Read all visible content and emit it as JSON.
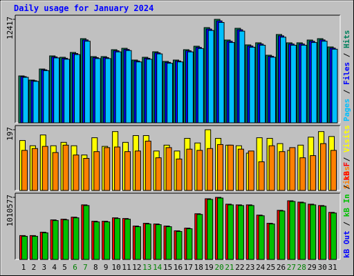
{
  "title": "Daily usage for January 2024",
  "legend_separator": " / ",
  "categories": [
    "1",
    "2",
    "3",
    "4",
    "5",
    "6",
    "7",
    "8",
    "9",
    "10",
    "11",
    "12",
    "13",
    "14",
    "15",
    "16",
    "17",
    "18",
    "19",
    "20",
    "21",
    "22",
    "23",
    "24",
    "25",
    "26",
    "27",
    "28",
    "29",
    "30",
    "31"
  ],
  "category_colors": [
    "#000000",
    "#000000",
    "#000000",
    "#000000",
    "#000000",
    "#008000",
    "#008000",
    "#000000",
    "#000000",
    "#000000",
    "#000000",
    "#000000",
    "#008000",
    "#008000",
    "#000000",
    "#000000",
    "#000000",
    "#000000",
    "#000000",
    "#008000",
    "#008000",
    "#000000",
    "#000000",
    "#000000",
    "#000000",
    "#000000",
    "#008000",
    "#008000",
    "#000000",
    "#000000",
    "#000000"
  ],
  "chart_data": [
    {
      "type": "bar",
      "ylim": [
        0,
        12417
      ],
      "yticks": [
        12417
      ],
      "series": [
        {
          "name": "Hits",
          "color": "#00805c",
          "values": [
            5629,
            5132,
            6457,
            8030,
            7864,
            8444,
            10099,
            7947,
            7947,
            8775,
            8940,
            7533,
            7864,
            8526,
            7367,
            7533,
            8775,
            9189,
            11424,
            12417,
            9934,
            11341,
            9354,
            9602,
            8112,
            10596,
            9602,
            9602,
            9934,
            10099,
            9106
          ]
        },
        {
          "name": "Files",
          "color": "#0000ff",
          "values": [
            5545,
            5055,
            6360,
            7910,
            7746,
            8317,
            9948,
            7828,
            7828,
            8643,
            8806,
            7420,
            7746,
            8398,
            7256,
            7420,
            8643,
            9051,
            11253,
            12231,
            9785,
            11171,
            9214,
            9458,
            7990,
            10437,
            9458,
            9458,
            9785,
            9948,
            8969
          ]
        },
        {
          "name": "Pages",
          "color": "#00c0ff",
          "values": [
            5460,
            4978,
            6263,
            7789,
            7628,
            8191,
            9796,
            7709,
            7709,
            8512,
            8672,
            7307,
            7628,
            8270,
            7146,
            7307,
            8512,
            8913,
            11081,
            12044,
            9636,
            11001,
            9073,
            9314,
            7869,
            10278,
            9314,
            9314,
            9636,
            9796,
            8833
          ]
        }
      ]
    },
    {
      "type": "bar",
      "ylim": [
        0,
        197
      ],
      "yticks": [
        197
      ],
      "series": [
        {
          "name": "Visits",
          "color": "#ffff00",
          "values": [
            162,
            145,
            180,
            145,
            156,
            145,
            115,
            171,
            143,
            191,
            156,
            178,
            178,
            128,
            147,
            128,
            169,
            154,
            197,
            169,
            147,
            145,
            121,
            171,
            169,
            152,
            130,
            147,
            173,
            191,
            175
          ]
        },
        {
          "name": "Sites",
          "color": "#ff8000",
          "values": [
            130,
            136,
            143,
            123,
            147,
            115,
            104,
            126,
            139,
            141,
            126,
            128,
            160,
            106,
            139,
            102,
            134,
            130,
            136,
            149,
            147,
            134,
            128,
            93,
            145,
            126,
            139,
            106,
            113,
            152,
            130
          ]
        }
      ]
    },
    {
      "type": "bar",
      "ylim": [
        0,
        1010577
      ],
      "yticks": [
        1010577
      ],
      "series": [
        {
          "name": "kB F",
          "color": "#ff0000",
          "values": [
            388675,
            388675,
            444200,
            644090,
            655195,
            688510,
            888400,
            621880,
            621880,
            677405,
            666300,
            544145,
            588565,
            577460,
            544145,
            466410,
            510830,
            744035,
            988345,
            1010577,
            899505,
            888400,
            888400,
            721825,
            588565,
            799560,
            955030,
            932820,
            899505,
            877295,
            766245
          ]
        },
        {
          "name": "kB In",
          "color": "#00c000",
          "values": [
            377570,
            377570,
            433095,
            632985,
            644090,
            677405,
            877295,
            610775,
            610775,
            666300,
            655195,
            533040,
            577460,
            566355,
            533040,
            455305,
            499725,
            732930,
            977240,
            999472,
            888400,
            877295,
            877295,
            710720,
            577460,
            788455,
            943925,
            921715,
            888400,
            866190,
            755140
          ]
        }
      ],
      "legend_only": [
        {
          "name": "kB Out",
          "color": "#0000ff"
        }
      ]
    }
  ]
}
